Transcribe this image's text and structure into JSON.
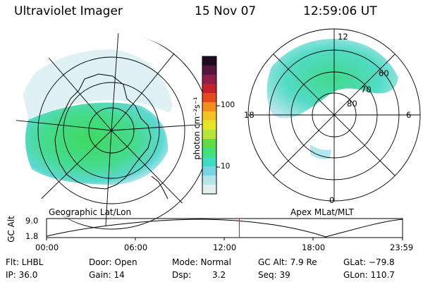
{
  "header": {
    "instrument": "Ultraviolet Imager",
    "date": "15 Nov 07",
    "time": "12:59:06 UT"
  },
  "colorbar": {
    "unit_label": "photon cm⁻²s⁻¹",
    "ticks": [
      "100",
      "10"
    ],
    "colors": [
      "#1e0a20",
      "#55163e",
      "#8e1f4a",
      "#c3222a",
      "#e44a1b",
      "#f08f1f",
      "#f1c323",
      "#e8e428",
      "#b5e43a",
      "#62dc45",
      "#3fe27e",
      "#3fdcc3",
      "#78d3e3",
      "#b5e5eb",
      "#e3eef0"
    ]
  },
  "left_map": {
    "caption": "Geographic Lat/Lon"
  },
  "right_map": {
    "caption": "Apex MLat/MLT",
    "lat_labels": [
      "60",
      "70",
      "80"
    ],
    "mlt_labels": {
      "top": "12",
      "left": "18",
      "right": "6",
      "bottom": "0"
    }
  },
  "altitude_plot": {
    "ylabel": "GC Alt",
    "yticks": [
      "9.0",
      "1.8"
    ],
    "xticks": [
      "00:00",
      "06:00",
      "12:00",
      "18:00",
      "23:59"
    ],
    "current_time_hours": 13.0
  },
  "status": {
    "flt": "Flt: LHBL",
    "ip": "IP: 36.0",
    "door": "Door: Open",
    "gain": "Gain: 14",
    "mode": "Mode: Normal",
    "dsp_label": "Dsp:",
    "dsp_value": "3.2",
    "gc_alt": "GC Alt: 7.9 Re",
    "seq": "Seq: 39",
    "glat": "GLat: −79.8",
    "glon": "GLon: 110.7"
  },
  "colors": {
    "aurora_green": "#3fd96a",
    "aurora_cyan": "#4fdcc8",
    "aurora_light": "#b5e5eb",
    "marker": "#e02020"
  }
}
